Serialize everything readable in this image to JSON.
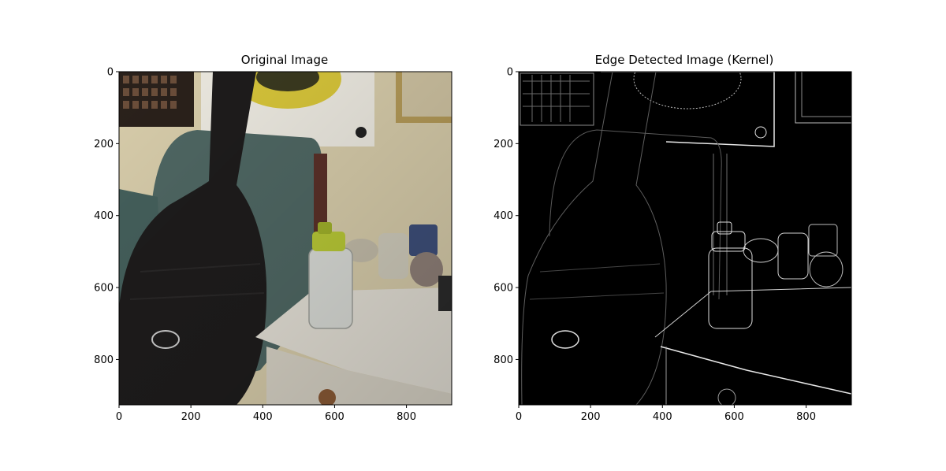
{
  "chart_data": [
    {
      "type": "image",
      "title": "Original Image",
      "xlim": [
        0,
        926
      ],
      "ylim": [
        926,
        0
      ],
      "x_ticks": [
        0,
        200,
        400,
        600,
        800
      ],
      "y_ticks": [
        0,
        200,
        400,
        600,
        800
      ],
      "content": "color photo: black guitar case leaning on teal armchair, white nightstand with glass bottle (yellow-green cap), glass bowl, jars; posters on wall",
      "colors": {
        "wall": "#d7ccaa",
        "chair": "#4f6763",
        "case": "#1e1c1c",
        "table": "#e4e0d6",
        "cap": "#b8c836"
      }
    },
    {
      "type": "image",
      "title": "Edge Detected Image (Kernel)",
      "xlim": [
        0,
        926
      ],
      "ylim": [
        926,
        0
      ],
      "x_ticks": [
        0,
        200,
        400,
        600,
        800
      ],
      "y_ticks": [
        0,
        200,
        400,
        600,
        800
      ],
      "content": "edge map of the same photo: thin light outlines on a black background",
      "colors": {
        "background": "#000000",
        "edges": "#e6e6e6"
      }
    }
  ]
}
